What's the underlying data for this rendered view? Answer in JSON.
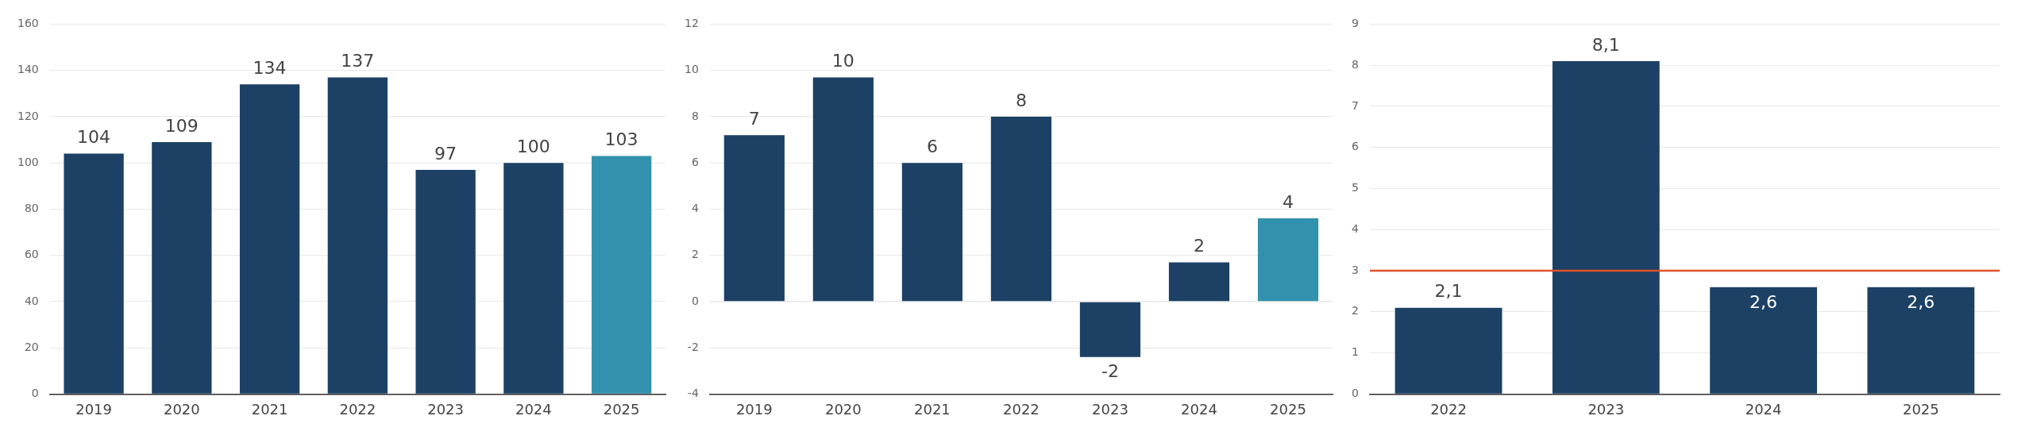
{
  "chart_data": [
    {
      "type": "bar",
      "categories": [
        "2019",
        "2020",
        "2021",
        "2022",
        "2023",
        "2024",
        "2025"
      ],
      "values": [
        104,
        109,
        134,
        137,
        97,
        100,
        103
      ],
      "colors": [
        "#1c4165",
        "#1c4165",
        "#1c4165",
        "#1c4165",
        "#1c4165",
        "#1c4165",
        "#3292ad"
      ],
      "ylim": [
        0,
        160
      ],
      "yticks": [
        0,
        20,
        40,
        60,
        80,
        100,
        120,
        140,
        160
      ],
      "grid": "y",
      "data_labels": true
    },
    {
      "type": "bar",
      "categories": [
        "2019",
        "2020",
        "2021",
        "2022",
        "2023",
        "2024",
        "2025"
      ],
      "values": [
        7.2,
        9.7,
        6,
        8,
        -2.4,
        1.7,
        3.6
      ],
      "value_labels": [
        "7",
        "10",
        "6",
        "8",
        "-2",
        "2",
        "4"
      ],
      "colors": [
        "#1c4165",
        "#1c4165",
        "#1c4165",
        "#1c4165",
        "#1c4165",
        "#1c4165",
        "#3292ad"
      ],
      "ylim": [
        -4,
        12
      ],
      "yticks": [
        -4,
        -2,
        0,
        2,
        4,
        6,
        8,
        10,
        12
      ],
      "grid": "y"
    },
    {
      "type": "bar",
      "categories": [
        "2022",
        "2023",
        "2024",
        "2025"
      ],
      "values": [
        2.1,
        8.1,
        2.6,
        2.6
      ],
      "value_labels": [
        "2,1",
        "8,1",
        "2,6",
        "2,6"
      ],
      "colors": [
        "#1c4165",
        "#1c4165",
        "#1c4165",
        "#1c4165"
      ],
      "ylim": [
        0,
        9
      ],
      "yticks": [
        0,
        1,
        2,
        3,
        4,
        5,
        6,
        7,
        8,
        9
      ],
      "grid": "y",
      "ref_lines": [
        {
          "axis": "y",
          "value": 3,
          "color": "#e0522a"
        }
      ]
    }
  ]
}
